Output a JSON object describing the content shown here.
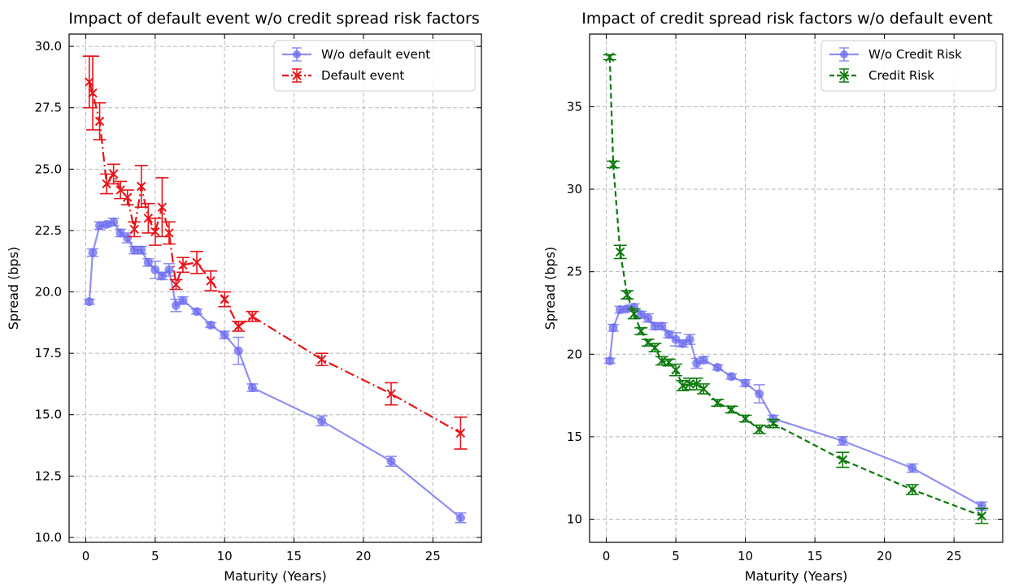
{
  "chart_data": [
    {
      "type": "line",
      "title": "Impact of default event w/o credit spread risk factors",
      "xlabel": "Maturity (Years)",
      "ylabel": "Spread (bps)",
      "xlim": [
        -1.2,
        28.5
      ],
      "ylim": [
        9.8,
        30.5
      ],
      "xticks": [
        0,
        5,
        10,
        15,
        20,
        25
      ],
      "xtick_labels": [
        "0",
        "5",
        "10",
        "15",
        "20",
        "25"
      ],
      "yticks": [
        10.0,
        12.5,
        15.0,
        17.5,
        20.0,
        22.5,
        25.0,
        27.5,
        30.0
      ],
      "ytick_labels": [
        "10.0",
        "12.5",
        "15.0",
        "17.5",
        "20.0",
        "22.5",
        "25.0",
        "27.5",
        "30.0"
      ],
      "grid": true,
      "legend": "top-right",
      "series": [
        {
          "name": "W/o default event",
          "color": "#6b6bf0",
          "linestyle": "solid",
          "marker": "circle",
          "x": [
            0.25,
            0.5,
            1,
            1.5,
            2,
            2.5,
            3,
            3.5,
            4,
            4.5,
            5,
            5.5,
            6,
            6.5,
            7,
            8,
            9,
            10,
            11,
            12,
            17,
            22,
            27
          ],
          "y": [
            19.6,
            21.6,
            22.7,
            22.75,
            22.85,
            22.4,
            22.2,
            21.7,
            21.7,
            21.2,
            20.9,
            20.65,
            20.9,
            19.45,
            19.65,
            19.2,
            18.65,
            18.25,
            17.6,
            16.1,
            14.75,
            13.1,
            10.8
          ],
          "err": [
            0.1,
            0.15,
            0.15,
            0.1,
            0.15,
            0.15,
            0.2,
            0.15,
            0.15,
            0.15,
            0.35,
            0.15,
            0.25,
            0.25,
            0.15,
            0.1,
            0.1,
            0.15,
            0.55,
            0.15,
            0.2,
            0.2,
            0.2
          ]
        },
        {
          "name": "Default event",
          "color": "#e8141a",
          "linestyle": "dashdot",
          "marker": "x",
          "x": [
            0.25,
            0.5,
            1,
            1.5,
            2,
            2.5,
            3,
            3.5,
            4,
            4.5,
            5,
            5.5,
            6,
            6.5,
            7,
            8,
            9,
            10,
            11,
            12,
            17,
            22,
            27
          ],
          "y": [
            28.55,
            28.1,
            26.95,
            24.4,
            24.8,
            24.15,
            23.85,
            22.55,
            24.3,
            23.0,
            22.45,
            23.45,
            22.4,
            20.3,
            21.1,
            21.2,
            20.45,
            19.7,
            18.6,
            19.0,
            17.25,
            15.85,
            14.25
          ],
          "err": [
            1.05,
            1.5,
            0.75,
            0.4,
            0.4,
            0.35,
            0.3,
            0.3,
            0.85,
            0.6,
            0.55,
            1.2,
            0.45,
            0.2,
            0.3,
            0.45,
            0.4,
            0.3,
            0.2,
            0.2,
            0.25,
            0.45,
            0.65
          ]
        }
      ]
    },
    {
      "type": "line",
      "title": "Impact of credit spread risk factors w/o default event",
      "xlabel": "Maturity (Years)",
      "ylabel": "Spread (bps)",
      "xlim": [
        -1.2,
        28.5
      ],
      "ylim": [
        8.6,
        39.4
      ],
      "xticks": [
        0,
        5,
        10,
        15,
        20,
        25
      ],
      "xtick_labels": [
        "0",
        "5",
        "10",
        "15",
        "20",
        "25"
      ],
      "yticks": [
        10,
        15,
        20,
        25,
        30,
        35
      ],
      "ytick_labels": [
        "10",
        "15",
        "20",
        "25",
        "30",
        "35"
      ],
      "grid": true,
      "legend": "top-right",
      "series": [
        {
          "name": "W/o Credit Risk",
          "color": "#6b6bf0",
          "linestyle": "solid",
          "marker": "circle",
          "x": [
            0.25,
            0.5,
            1,
            1.5,
            2,
            2.5,
            3,
            3.5,
            4,
            4.5,
            5,
            5.5,
            6,
            6.5,
            7,
            8,
            9,
            10,
            11,
            12,
            17,
            22,
            27
          ],
          "y": [
            19.6,
            21.6,
            22.7,
            22.75,
            22.85,
            22.4,
            22.2,
            21.7,
            21.7,
            21.2,
            20.9,
            20.65,
            20.9,
            19.45,
            19.65,
            19.2,
            18.65,
            18.25,
            17.6,
            16.1,
            14.75,
            13.1,
            10.8
          ],
          "err": [
            0.15,
            0.2,
            0.2,
            0.15,
            0.2,
            0.2,
            0.25,
            0.2,
            0.2,
            0.2,
            0.4,
            0.2,
            0.3,
            0.3,
            0.2,
            0.15,
            0.15,
            0.2,
            0.55,
            0.2,
            0.25,
            0.25,
            0.25
          ]
        },
        {
          "name": "Credit Risk",
          "color": "#0d7a0d",
          "linestyle": "dashed",
          "marker": "x",
          "x": [
            0.25,
            0.5,
            1,
            1.5,
            2,
            2.5,
            3,
            3.5,
            4,
            4.5,
            5,
            5.5,
            6,
            6.5,
            7,
            8,
            9,
            10,
            11,
            12,
            17,
            22,
            27
          ],
          "y": [
            38.0,
            31.5,
            26.2,
            23.6,
            22.45,
            21.4,
            20.7,
            20.4,
            19.6,
            19.5,
            19.05,
            18.1,
            18.2,
            18.2,
            17.9,
            17.05,
            16.65,
            16.1,
            15.45,
            15.8,
            13.6,
            11.8,
            10.2
          ],
          "err": [
            0.15,
            0.2,
            0.4,
            0.25,
            0.3,
            0.2,
            0.2,
            0.25,
            0.25,
            0.2,
            0.35,
            0.3,
            0.35,
            0.35,
            0.3,
            0.2,
            0.2,
            0.2,
            0.25,
            0.25,
            0.45,
            0.3,
            0.45
          ]
        }
      ]
    }
  ]
}
